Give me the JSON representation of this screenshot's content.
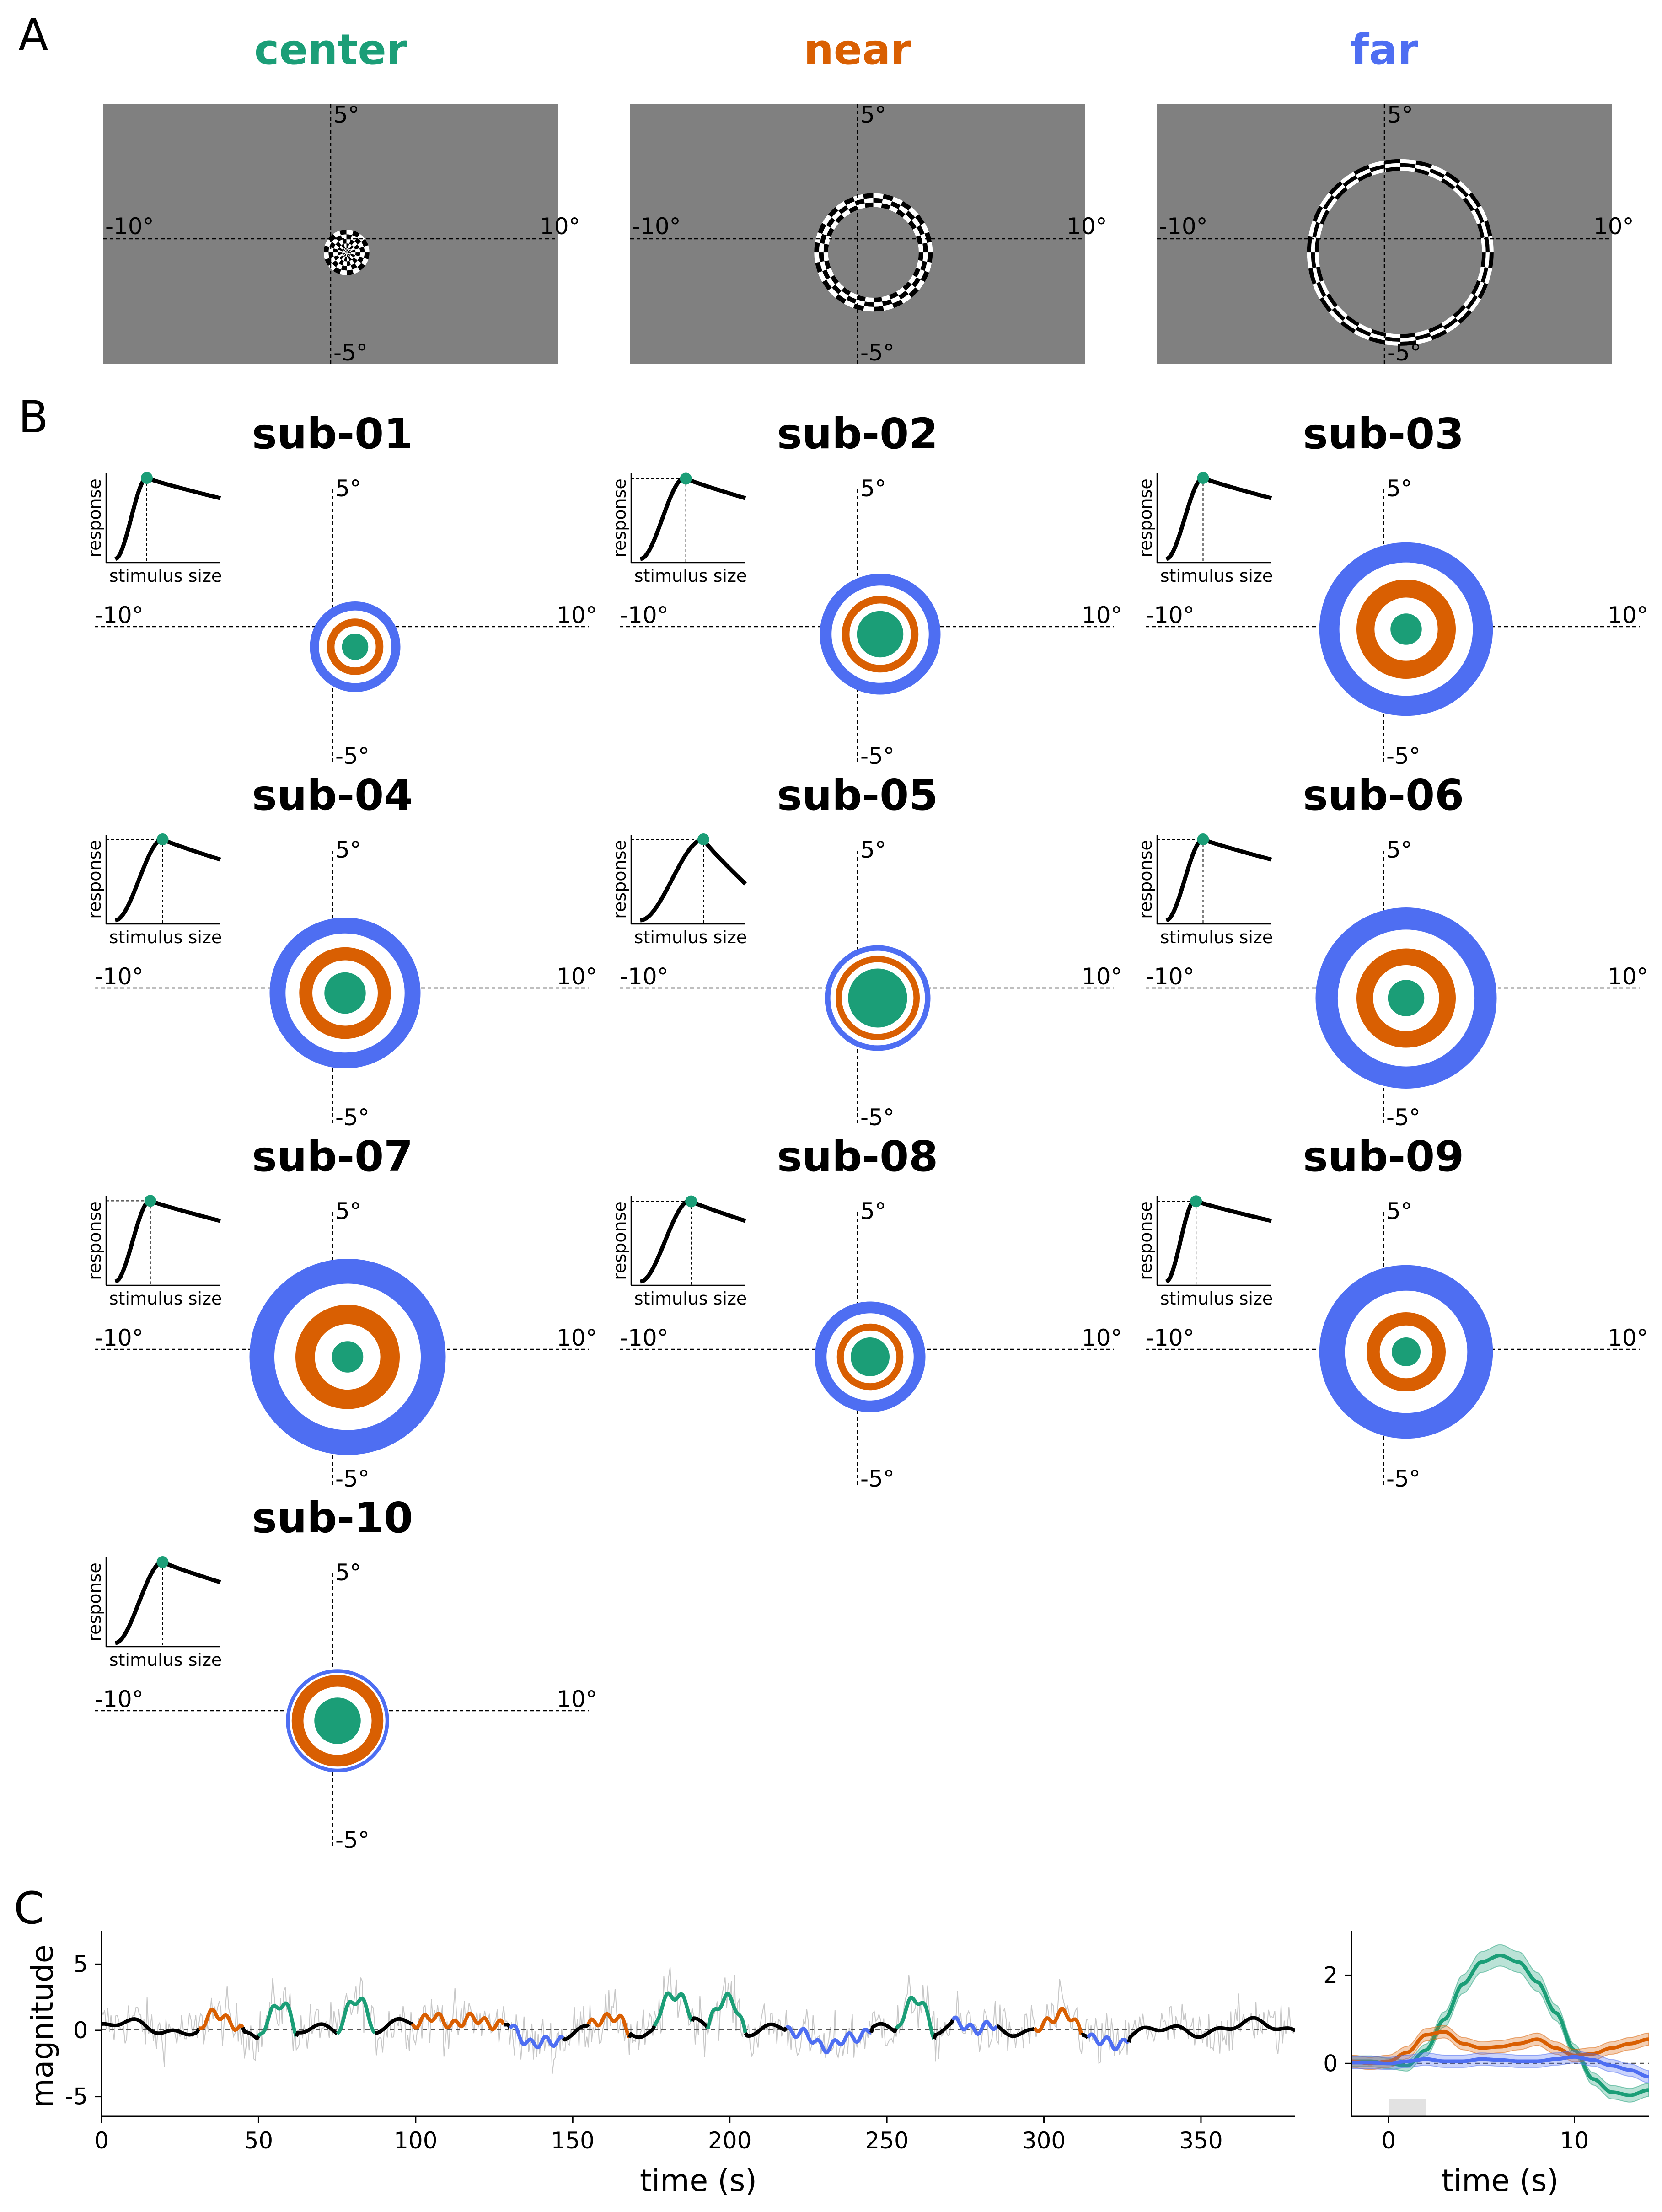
{
  "panel_labels": [
    "A",
    "B",
    "C"
  ],
  "colors": {
    "center": "#1b9e77",
    "near": "#d95f02",
    "far": "#4e6ef2",
    "grey": "#808080",
    "trace": "#000000",
    "raw": "#c8c8c8"
  },
  "panel_a": {
    "stimuli": [
      {
        "title": "center",
        "type": "disk",
        "inner_deg": 0,
        "outer_deg": 1.0
      },
      {
        "title": "near",
        "type": "annulus",
        "inner_deg": 2.0,
        "outer_deg": 2.6
      },
      {
        "title": "far",
        "type": "annulus",
        "inner_deg": 3.6,
        "outer_deg": 4.1
      }
    ],
    "tick_labels": {
      "top": "5°",
      "bottom": "-5°",
      "left": "-10°",
      "right": "10°"
    }
  },
  "panel_b": {
    "inset_xlabel": "stimulus size",
    "inset_ylabel": "response",
    "tick_labels": {
      "top": "5°",
      "bottom": "-5°",
      "left": "-10°",
      "right": "10°"
    },
    "subjects": [
      {
        "title": "sub-01",
        "cx": 0.9,
        "cy": -0.8,
        "center_r": 0.55,
        "near_r": 1.15,
        "far_r": 1.8,
        "peak": 0.3
      },
      {
        "title": "sub-02",
        "cx": 0.9,
        "cy": -0.3,
        "center_r": 0.95,
        "near_r": 1.55,
        "far_r": 2.4,
        "peak": 0.42
      },
      {
        "title": "sub-03",
        "cx": 0.9,
        "cy": -0.1,
        "center_r": 0.65,
        "near_r": 2.0,
        "far_r": 3.45,
        "peak": 0.35
      },
      {
        "title": "sub-04",
        "cx": 0.5,
        "cy": -0.2,
        "center_r": 0.85,
        "near_r": 1.85,
        "far_r": 3.0,
        "peak": 0.45
      },
      {
        "title": "sub-05",
        "cx": 0.8,
        "cy": -0.4,
        "center_r": 1.2,
        "near_r": 1.7,
        "far_r": 2.1,
        "peak": 0.6
      },
      {
        "title": "sub-06",
        "cx": 0.9,
        "cy": -0.4,
        "center_r": 0.75,
        "near_r": 2.0,
        "far_r": 3.6,
        "peak": 0.35
      },
      {
        "title": "sub-07",
        "cx": 0.6,
        "cy": -0.3,
        "center_r": 0.65,
        "near_r": 2.1,
        "far_r": 3.9,
        "peak": 0.33
      },
      {
        "title": "sub-08",
        "cx": 0.5,
        "cy": -0.3,
        "center_r": 0.8,
        "near_r": 1.35,
        "far_r": 2.2,
        "peak": 0.47
      },
      {
        "title": "sub-09",
        "cx": 0.9,
        "cy": -0.1,
        "center_r": 0.6,
        "near_r": 1.6,
        "far_r": 3.45,
        "peak": 0.27
      },
      {
        "title": "sub-10",
        "cx": 0.2,
        "cy": -0.4,
        "center_r": 0.95,
        "near_r": 1.85,
        "far_r": 2.05,
        "peak": 0.45
      }
    ]
  },
  "chart_data": [
    {
      "type": "line",
      "xlabel": "time (s)",
      "ylabel": "magnitude",
      "xlim": [
        0,
        380
      ],
      "ylim": [
        -6.5,
        7.5
      ],
      "xticks": [
        0,
        50,
        100,
        150,
        200,
        250,
        300,
        350
      ],
      "yticks": [
        -5,
        0,
        5
      ],
      "segments": [
        {
          "condition": "near",
          "start": 31,
          "end": 45
        },
        {
          "condition": "center",
          "start": 50,
          "end": 62
        },
        {
          "condition": "center",
          "start": 75,
          "end": 87
        },
        {
          "condition": "near",
          "start": 99,
          "end": 128
        },
        {
          "condition": "far",
          "start": 130,
          "end": 147
        },
        {
          "condition": "near",
          "start": 155,
          "end": 168
        },
        {
          "condition": "center",
          "start": 176,
          "end": 188
        },
        {
          "condition": "center",
          "start": 193,
          "end": 205
        },
        {
          "condition": "far",
          "start": 218,
          "end": 245
        },
        {
          "condition": "center",
          "start": 253,
          "end": 265
        },
        {
          "condition": "far",
          "start": 271,
          "end": 285
        },
        {
          "condition": "near",
          "start": 297,
          "end": 312
        },
        {
          "condition": "far",
          "start": 314,
          "end": 327
        }
      ]
    },
    {
      "type": "line",
      "xlabel": "time (s)",
      "ylabel": "",
      "xlim": [
        -2,
        14
      ],
      "ylim": [
        -1.2,
        3.0
      ],
      "xticks": [
        0,
        10
      ],
      "yticks": [
        0,
        2
      ],
      "stimulus_window": [
        0,
        2
      ],
      "x": [
        -2,
        -1,
        0,
        1,
        2,
        3,
        4,
        5,
        6,
        7,
        8,
        9,
        10,
        11,
        12,
        13,
        14
      ],
      "series": [
        {
          "condition": "center",
          "values": [
            0.05,
            0.05,
            0.0,
            -0.05,
            0.3,
            1.0,
            1.8,
            2.3,
            2.45,
            2.3,
            1.85,
            1.15,
            0.3,
            -0.35,
            -0.65,
            -0.72,
            -0.6
          ]
        },
        {
          "condition": "near",
          "values": [
            0.05,
            0.0,
            0.05,
            0.25,
            0.65,
            0.72,
            0.45,
            0.35,
            0.38,
            0.45,
            0.55,
            0.35,
            0.18,
            0.22,
            0.35,
            0.45,
            0.55
          ]
        },
        {
          "condition": "far",
          "values": [
            0.02,
            0.02,
            0.0,
            0.05,
            0.1,
            0.05,
            0.05,
            0.1,
            0.08,
            0.05,
            0.05,
            0.1,
            0.15,
            0.08,
            -0.05,
            -0.15,
            -0.3
          ]
        }
      ]
    }
  ]
}
